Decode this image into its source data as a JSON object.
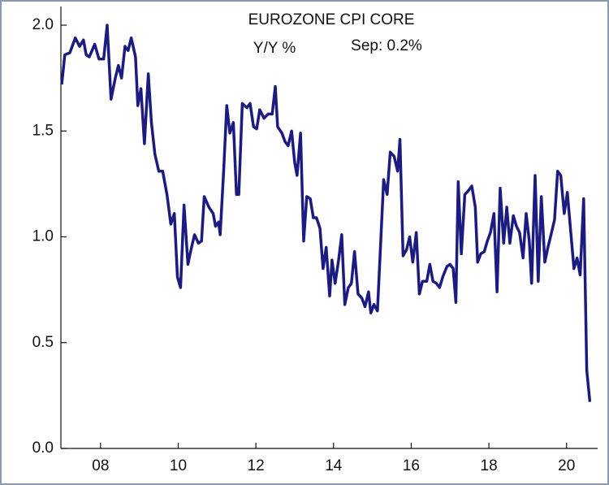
{
  "chart_data": {
    "type": "line",
    "title": "EUROZONE CPI CORE",
    "subtitle": "Y/Y %",
    "annotation": "Sep: 0.2%",
    "x": [
      2007.0,
      2007.08,
      2007.21,
      2007.35,
      2007.46,
      2007.56,
      2007.63,
      2007.71,
      2007.85,
      2007.96,
      2008.08,
      2008.17,
      2008.27,
      2008.38,
      2008.46,
      2008.54,
      2008.63,
      2008.71,
      2008.79,
      2008.9,
      2008.96,
      2009.04,
      2009.13,
      2009.23,
      2009.31,
      2009.4,
      2009.5,
      2009.6,
      2009.71,
      2009.81,
      2009.9,
      2009.98,
      2010.06,
      2010.15,
      2010.25,
      2010.33,
      2010.42,
      2010.52,
      2010.6,
      2010.67,
      2010.79,
      2010.9,
      2010.96,
      2011.04,
      2011.08,
      2011.17,
      2011.25,
      2011.33,
      2011.42,
      2011.5,
      2011.56,
      2011.65,
      2011.77,
      2011.85,
      2011.94,
      2012.02,
      2012.1,
      2012.21,
      2012.31,
      2012.42,
      2012.5,
      2012.56,
      2012.67,
      2012.75,
      2012.83,
      2012.92,
      2013.0,
      2013.06,
      2013.15,
      2013.23,
      2013.31,
      2013.4,
      2013.48,
      2013.56,
      2013.65,
      2013.73,
      2013.81,
      2013.9,
      2013.96,
      2014.04,
      2014.13,
      2014.21,
      2014.29,
      2014.38,
      2014.46,
      2014.54,
      2014.63,
      2014.73,
      2014.81,
      2014.9,
      2014.96,
      2015.04,
      2015.13,
      2015.19,
      2015.29,
      2015.38,
      2015.46,
      2015.56,
      2015.65,
      2015.71,
      2015.79,
      2015.88,
      2015.96,
      2016.04,
      2016.13,
      2016.21,
      2016.29,
      2016.4,
      2016.48,
      2016.56,
      2016.65,
      2016.73,
      2016.81,
      2016.92,
      2017.0,
      2017.08,
      2017.15,
      2017.21,
      2017.29,
      2017.38,
      2017.48,
      2017.56,
      2017.65,
      2017.71,
      2017.79,
      2017.88,
      2017.96,
      2018.04,
      2018.13,
      2018.21,
      2018.29,
      2018.38,
      2018.46,
      2018.54,
      2018.63,
      2018.71,
      2018.79,
      2018.88,
      2018.96,
      2019.04,
      2019.1,
      2019.19,
      2019.27,
      2019.35,
      2019.44,
      2019.52,
      2019.6,
      2019.69,
      2019.77,
      2019.85,
      2019.94,
      2020.02,
      2020.1,
      2020.19,
      2020.27,
      2020.35,
      2020.44,
      2020.52,
      2020.6
    ],
    "series": [
      {
        "name": "Eurozone CPI core",
        "color": "#1c1c80",
        "values": [
          1.72,
          1.86,
          1.87,
          1.94,
          1.9,
          1.93,
          1.86,
          1.85,
          1.91,
          1.84,
          1.84,
          2.0,
          1.65,
          1.75,
          1.81,
          1.75,
          1.9,
          1.88,
          1.94,
          1.85,
          1.62,
          1.7,
          1.44,
          1.77,
          1.54,
          1.39,
          1.31,
          1.31,
          1.2,
          1.06,
          1.11,
          0.81,
          0.76,
          1.15,
          0.87,
          0.94,
          1.01,
          0.97,
          0.98,
          1.19,
          1.14,
          1.11,
          1.05,
          1.07,
          1.01,
          1.31,
          1.62,
          1.49,
          1.54,
          1.2,
          1.2,
          1.63,
          1.61,
          1.63,
          1.52,
          1.51,
          1.6,
          1.56,
          1.58,
          1.58,
          1.71,
          1.52,
          1.49,
          1.45,
          1.43,
          1.5,
          1.35,
          1.29,
          1.49,
          0.98,
          1.19,
          1.18,
          1.09,
          1.09,
          1.04,
          0.85,
          0.95,
          0.72,
          0.89,
          0.78,
          0.89,
          1.01,
          0.68,
          0.76,
          0.78,
          0.93,
          0.73,
          0.71,
          0.67,
          0.74,
          0.64,
          0.68,
          0.65,
          0.88,
          1.27,
          1.2,
          1.4,
          1.38,
          1.31,
          1.46,
          0.91,
          0.94,
          1.0,
          0.88,
          1.02,
          0.73,
          0.79,
          0.79,
          0.87,
          0.79,
          0.78,
          0.76,
          0.81,
          0.86,
          0.87,
          0.85,
          0.69,
          1.26,
          0.92,
          1.2,
          1.22,
          1.24,
          1.14,
          0.88,
          0.92,
          0.93,
          0.98,
          1.02,
          1.11,
          0.74,
          1.23,
          0.97,
          1.14,
          0.97,
          1.1,
          1.05,
          1.02,
          0.9,
          1.11,
          0.98,
          0.78,
          1.29,
          0.79,
          1.19,
          0.88,
          0.95,
          1.01,
          1.08,
          1.31,
          1.29,
          1.11,
          1.21,
          1.04,
          0.85,
          0.9,
          0.82,
          1.18,
          0.37,
          0.22
        ]
      }
    ],
    "xlim": [
      2007.0,
      2020.8
    ],
    "xticks": [
      {
        "value": 2008,
        "label": "08"
      },
      {
        "value": 2010,
        "label": "10"
      },
      {
        "value": 2012,
        "label": "12"
      },
      {
        "value": 2014,
        "label": "14"
      },
      {
        "value": 2016,
        "label": "16"
      },
      {
        "value": 2018,
        "label": "18"
      },
      {
        "value": 2020,
        "label": "20"
      }
    ],
    "ylim": [
      0,
      2.0
    ],
    "yticks": [
      {
        "value": 0,
        "label": "0.0"
      },
      0.5,
      {
        "value": 1,
        "label": "1.0"
      },
      1.5,
      {
        "value": 2,
        "label": "2.0"
      }
    ],
    "grid": false
  }
}
